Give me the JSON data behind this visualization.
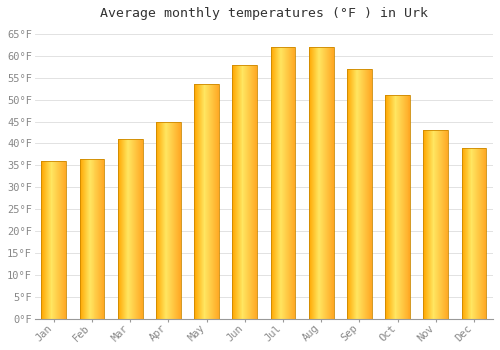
{
  "title": "Average monthly temperatures (°F ) in Urk",
  "months": [
    "Jan",
    "Feb",
    "Mar",
    "Apr",
    "May",
    "Jun",
    "Jul",
    "Aug",
    "Sep",
    "Oct",
    "Nov",
    "Dec"
  ],
  "values": [
    36,
    36.5,
    41,
    45,
    53.5,
    58,
    62,
    62,
    57,
    51,
    43,
    39
  ],
  "bar_color_main": "#FFA500",
  "bar_color_light": "#FFD04A",
  "bar_color_lightest": "#FFE080",
  "background_color": "#FFFFFF",
  "grid_color": "#DDDDDD",
  "ytick_min": 0,
  "ytick_max": 65,
  "ytick_step": 5,
  "title_fontsize": 9.5,
  "tick_fontsize": 7.5,
  "label_color": "#888888",
  "title_color": "#333333"
}
